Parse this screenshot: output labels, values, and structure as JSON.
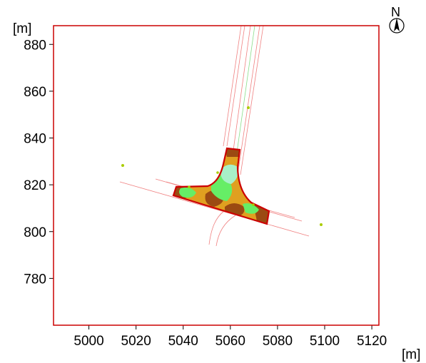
{
  "map": {
    "x_unit": "[m]",
    "y_unit": "[m]",
    "north_label": "N",
    "x_range": [
      4985,
      5123
    ],
    "y_range": [
      760,
      888
    ],
    "x_ticks": [
      "5000",
      "5020",
      "5040",
      "5060",
      "5080",
      "5100",
      "5120"
    ],
    "y_ticks": [
      "880",
      "860",
      "840",
      "820",
      "800",
      "780"
    ],
    "colors": {
      "frame": "#cc0000",
      "road_lines": "#f08080",
      "centerline": "#88dd88",
      "pad_outline": "#cc0000",
      "pad_fill": "#e0a020",
      "light_green": "#66ee66",
      "dark_brown": "#8b4513",
      "pale_cyan": "#a8f0c8",
      "markers": "#aacc00"
    }
  }
}
